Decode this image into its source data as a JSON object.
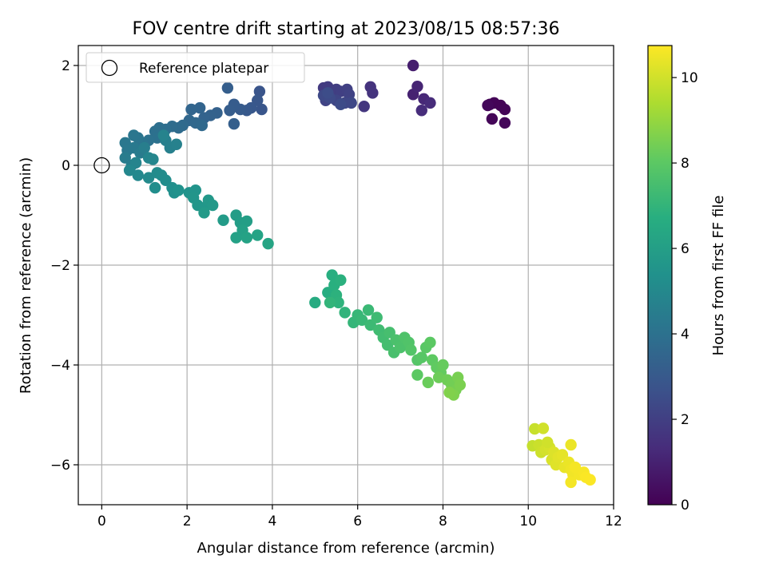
{
  "chart_data": {
    "type": "scatter",
    "title": "FOV centre drift starting at 2023/08/15 08:57:36",
    "xlabel": "Angular distance from reference (arcmin)",
    "ylabel": "Rotation from reference (arcmin)",
    "xlim": [
      -0.55,
      12.0
    ],
    "ylim": [
      -6.8,
      2.4
    ],
    "xticks": [
      0,
      2,
      4,
      6,
      8,
      10,
      12
    ],
    "yticks": [
      -6,
      -4,
      -2,
      0,
      2
    ],
    "grid": true,
    "legend": {
      "placement": "upper-left",
      "entries": [
        "Reference platepar"
      ]
    },
    "reference_point": {
      "x": 0,
      "y": 0,
      "label": "Reference platepar"
    },
    "colorbar": {
      "label": "Hours from first FF file",
      "colormap": "viridis",
      "range": [
        0,
        10.75
      ],
      "ticks": [
        0,
        2,
        4,
        6,
        8,
        10
      ]
    },
    "series": [
      {
        "points": [
          [
            9.1,
            1.22,
            0.05
          ],
          [
            9.2,
            1.25,
            0.1
          ],
          [
            9.35,
            1.2,
            0.08
          ],
          [
            9.45,
            1.12,
            0.12
          ],
          [
            9.15,
            0.93,
            0.15
          ],
          [
            9.45,
            0.85,
            0.18
          ],
          [
            9.05,
            1.2,
            0.2
          ],
          [
            7.3,
            2.0,
            0.9
          ],
          [
            7.3,
            1.42,
            1.0
          ],
          [
            7.4,
            1.58,
            1.1
          ],
          [
            7.55,
            1.33,
            1.2
          ],
          [
            7.7,
            1.25,
            1.3
          ],
          [
            7.5,
            1.1,
            1.35
          ],
          [
            6.3,
            1.57,
            1.55
          ],
          [
            6.35,
            1.45,
            1.6
          ],
          [
            6.15,
            1.18,
            1.7
          ],
          [
            5.2,
            1.55,
            1.8
          ],
          [
            5.3,
            1.57,
            1.85
          ],
          [
            5.4,
            1.45,
            1.9
          ],
          [
            5.5,
            1.52,
            1.95
          ],
          [
            5.6,
            1.48,
            2.0
          ],
          [
            5.75,
            1.52,
            2.05
          ],
          [
            5.8,
            1.42,
            2.1
          ],
          [
            5.25,
            1.3,
            2.15
          ],
          [
            5.5,
            1.3,
            2.2
          ],
          [
            5.7,
            1.25,
            2.25
          ],
          [
            5.85,
            1.25,
            2.3
          ],
          [
            5.2,
            1.4,
            2.35
          ],
          [
            5.35,
            1.35,
            2.4
          ],
          [
            5.6,
            1.22,
            2.45
          ],
          [
            5.3,
            1.45,
            2.5
          ],
          [
            3.7,
            1.48,
            2.8
          ],
          [
            3.75,
            1.12,
            2.85
          ],
          [
            3.65,
            1.3,
            2.9
          ],
          [
            3.5,
            1.15,
            2.95
          ],
          [
            3.4,
            1.1,
            3.0
          ],
          [
            3.25,
            1.12,
            3.05
          ],
          [
            3.1,
            1.22,
            3.1
          ],
          [
            3.0,
            1.1,
            3.15
          ],
          [
            2.95,
            1.55,
            3.2
          ],
          [
            3.1,
            0.83,
            3.25
          ],
          [
            2.7,
            1.05,
            3.3
          ],
          [
            2.55,
            1.0,
            3.35
          ],
          [
            2.4,
            0.95,
            3.4
          ],
          [
            2.3,
            1.15,
            3.45
          ],
          [
            2.1,
            1.12,
            3.5
          ],
          [
            2.05,
            0.9,
            3.55
          ],
          [
            2.2,
            0.85,
            3.6
          ],
          [
            2.35,
            0.8,
            3.65
          ],
          [
            1.9,
            0.8,
            3.7
          ],
          [
            1.8,
            0.75,
            3.75
          ],
          [
            1.65,
            0.78,
            3.8
          ],
          [
            1.5,
            0.72,
            3.85
          ],
          [
            1.35,
            0.75,
            3.9
          ],
          [
            1.25,
            0.68,
            3.95
          ],
          [
            1.3,
            0.55,
            4.0
          ],
          [
            1.1,
            0.5,
            4.05
          ],
          [
            0.95,
            0.45,
            4.1
          ],
          [
            0.85,
            0.55,
            4.15
          ],
          [
            0.75,
            0.6,
            4.2
          ],
          [
            0.55,
            0.45,
            4.25
          ],
          [
            0.6,
            0.3,
            4.3
          ],
          [
            0.75,
            0.35,
            4.35
          ],
          [
            0.9,
            0.25,
            4.4
          ],
          [
            0.55,
            0.15,
            4.45
          ],
          [
            0.7,
            0.0,
            4.5
          ],
          [
            1.0,
            0.35,
            4.55
          ],
          [
            1.5,
            0.5,
            4.6
          ],
          [
            1.6,
            0.35,
            4.65
          ],
          [
            1.75,
            0.42,
            4.7
          ],
          [
            1.45,
            0.6,
            4.75
          ],
          [
            0.8,
            0.05,
            4.8
          ],
          [
            1.1,
            0.15,
            4.85
          ],
          [
            1.2,
            0.12,
            4.9
          ],
          [
            0.65,
            -0.1,
            4.95
          ],
          [
            0.85,
            -0.2,
            5.0
          ],
          [
            1.1,
            -0.25,
            5.05
          ],
          [
            1.3,
            -0.15,
            5.1
          ],
          [
            1.4,
            -0.2,
            5.15
          ],
          [
            1.5,
            -0.3,
            5.2
          ],
          [
            1.25,
            -0.45,
            5.25
          ],
          [
            1.65,
            -0.45,
            5.3
          ],
          [
            1.7,
            -0.55,
            5.35
          ],
          [
            1.8,
            -0.5,
            5.4
          ],
          [
            2.05,
            -0.55,
            5.45
          ],
          [
            2.2,
            -0.5,
            5.5
          ],
          [
            2.15,
            -0.65,
            5.55
          ],
          [
            2.25,
            -0.8,
            5.6
          ],
          [
            2.4,
            -0.85,
            5.65
          ],
          [
            2.5,
            -0.7,
            5.7
          ],
          [
            2.6,
            -0.8,
            5.75
          ],
          [
            2.4,
            -0.95,
            5.8
          ],
          [
            2.85,
            -1.1,
            5.85
          ],
          [
            3.15,
            -1.0,
            5.9
          ],
          [
            3.25,
            -1.15,
            5.95
          ],
          [
            3.4,
            -1.12,
            6.0
          ],
          [
            3.3,
            -1.3,
            6.05
          ],
          [
            3.15,
            -1.45,
            6.1
          ],
          [
            3.4,
            -1.45,
            6.15
          ],
          [
            3.65,
            -1.4,
            6.2
          ],
          [
            3.9,
            -1.57,
            6.25
          ],
          [
            5.0,
            -2.75,
            6.6
          ],
          [
            5.3,
            -2.55,
            6.65
          ],
          [
            5.4,
            -2.2,
            6.7
          ],
          [
            5.45,
            -2.4,
            6.75
          ],
          [
            5.6,
            -2.3,
            6.8
          ],
          [
            5.5,
            -2.6,
            6.85
          ],
          [
            5.55,
            -2.75,
            6.9
          ],
          [
            5.7,
            -2.95,
            6.95
          ],
          [
            5.35,
            -2.75,
            7.0
          ],
          [
            5.9,
            -3.15,
            7.05
          ],
          [
            6.0,
            -3.0,
            7.1
          ],
          [
            6.1,
            -3.1,
            7.15
          ],
          [
            6.25,
            -2.9,
            7.2
          ],
          [
            6.3,
            -3.2,
            7.25
          ],
          [
            6.45,
            -3.05,
            7.3
          ],
          [
            6.5,
            -3.3,
            7.35
          ],
          [
            6.6,
            -3.45,
            7.4
          ],
          [
            6.7,
            -3.6,
            7.45
          ],
          [
            6.75,
            -3.35,
            7.5
          ],
          [
            6.85,
            -3.75,
            7.55
          ],
          [
            6.9,
            -3.5,
            7.6
          ],
          [
            7.0,
            -3.65,
            7.65
          ],
          [
            7.1,
            -3.45,
            7.7
          ],
          [
            7.2,
            -3.55,
            7.75
          ],
          [
            7.25,
            -3.7,
            7.8
          ],
          [
            7.4,
            -3.9,
            7.85
          ],
          [
            7.5,
            -3.85,
            7.9
          ],
          [
            7.6,
            -3.65,
            7.95
          ],
          [
            7.7,
            -3.55,
            8.0
          ],
          [
            7.75,
            -3.9,
            8.05
          ],
          [
            7.85,
            -4.05,
            8.1
          ],
          [
            7.95,
            -4.15,
            8.15
          ],
          [
            8.0,
            -4.0,
            8.2
          ],
          [
            7.65,
            -4.35,
            8.25
          ],
          [
            7.9,
            -4.25,
            8.3
          ],
          [
            8.1,
            -4.3,
            8.35
          ],
          [
            8.2,
            -4.4,
            8.4
          ],
          [
            8.3,
            -4.5,
            8.45
          ],
          [
            8.35,
            -4.25,
            8.5
          ],
          [
            8.4,
            -4.4,
            8.55
          ],
          [
            8.25,
            -4.6,
            8.6
          ],
          [
            8.15,
            -4.55,
            8.65
          ],
          [
            7.4,
            -4.2,
            8.0
          ],
          [
            10.1,
            -5.62,
            9.8
          ],
          [
            10.15,
            -5.28,
            9.85
          ],
          [
            10.25,
            -5.6,
            9.9
          ],
          [
            10.3,
            -5.75,
            9.95
          ],
          [
            10.35,
            -5.27,
            10.0
          ],
          [
            10.4,
            -5.7,
            10.05
          ],
          [
            10.5,
            -5.65,
            10.1
          ],
          [
            10.55,
            -5.9,
            10.15
          ],
          [
            10.6,
            -5.75,
            10.2
          ],
          [
            10.65,
            -6.0,
            10.25
          ],
          [
            10.7,
            -5.85,
            10.3
          ],
          [
            10.8,
            -5.8,
            10.35
          ],
          [
            10.85,
            -6.05,
            10.4
          ],
          [
            10.95,
            -5.95,
            10.45
          ],
          [
            11.0,
            -6.1,
            10.5
          ],
          [
            11.0,
            -5.6,
            10.45
          ],
          [
            11.05,
            -6.2,
            10.55
          ],
          [
            11.0,
            -6.35,
            10.6
          ],
          [
            11.2,
            -6.2,
            10.6
          ],
          [
            11.3,
            -6.15,
            10.65
          ],
          [
            11.35,
            -6.25,
            10.7
          ],
          [
            11.45,
            -6.3,
            10.72
          ],
          [
            11.1,
            -6.05,
            10.62
          ],
          [
            10.45,
            -5.55,
            10.0
          ]
        ]
      }
    ]
  }
}
